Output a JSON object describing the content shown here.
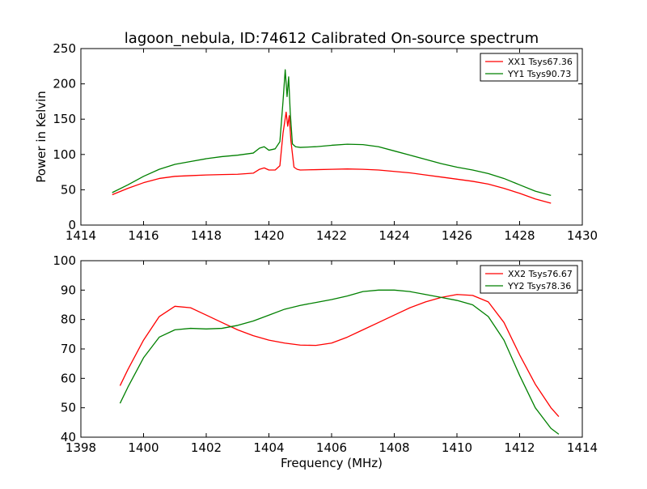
{
  "figure": {
    "title": "lagoon_nebula, ID:74612 Calibrated On-source spectrum"
  },
  "chart_data": [
    {
      "type": "line",
      "title": "lagoon_nebula, ID:74612 Calibrated On-source spectrum",
      "xlabel": "",
      "ylabel": "Power in Kelvin",
      "xlim": [
        1414,
        1430
      ],
      "ylim": [
        0,
        250
      ],
      "xticks": [
        1414,
        1416,
        1418,
        1420,
        1422,
        1424,
        1426,
        1428,
        1430
      ],
      "yticks": [
        0,
        50,
        100,
        150,
        200,
        250
      ],
      "grid": false,
      "legend": "top-right",
      "series": [
        {
          "name": "XX1 Tsys67.36",
          "color": "#ff0000",
          "x": [
            1415.0,
            1415.5,
            1416.0,
            1416.5,
            1417.0,
            1417.5,
            1418.0,
            1418.5,
            1419.0,
            1419.5,
            1419.7,
            1419.85,
            1420.0,
            1420.2,
            1420.35,
            1420.45,
            1420.55,
            1420.6,
            1420.65,
            1420.7,
            1420.8,
            1420.9,
            1421.0,
            1421.5,
            1422.0,
            1422.5,
            1423.0,
            1423.5,
            1424.0,
            1424.5,
            1425.0,
            1425.5,
            1426.0,
            1426.5,
            1427.0,
            1427.5,
            1428.0,
            1428.5,
            1429.0
          ],
          "values": [
            43,
            52,
            60,
            66,
            69,
            70,
            71,
            71.5,
            72,
            73.5,
            79,
            81,
            78,
            78,
            84,
            130,
            160,
            140,
            155,
            120,
            82,
            79,
            78,
            78.5,
            79,
            79.5,
            79,
            78,
            76,
            74,
            71,
            68,
            65,
            62,
            58,
            52,
            45,
            37,
            31
          ]
        },
        {
          "name": "YY1 Tsys90.73",
          "color": "#008000",
          "x": [
            1415.0,
            1415.5,
            1416.0,
            1416.5,
            1417.0,
            1417.5,
            1418.0,
            1418.5,
            1419.0,
            1419.5,
            1419.7,
            1419.85,
            1420.0,
            1420.2,
            1420.35,
            1420.45,
            1420.52,
            1420.58,
            1420.63,
            1420.68,
            1420.75,
            1420.85,
            1421.0,
            1421.5,
            1422.0,
            1422.5,
            1423.0,
            1423.5,
            1424.0,
            1424.5,
            1425.0,
            1425.5,
            1426.0,
            1426.5,
            1427.0,
            1427.5,
            1428.0,
            1428.5,
            1429.0
          ],
          "values": [
            46,
            57,
            69,
            79,
            86,
            90,
            94,
            97,
            99,
            102,
            109,
            111,
            106,
            108,
            118,
            175,
            220,
            182,
            210,
            160,
            115,
            111,
            110,
            111,
            113,
            114.5,
            114,
            111,
            105,
            99,
            93,
            87,
            82,
            78,
            73,
            66,
            57,
            48,
            42
          ]
        }
      ]
    },
    {
      "type": "line",
      "title": "",
      "xlabel": "Frequency (MHz)",
      "ylabel": "",
      "xlim": [
        1398,
        1414
      ],
      "ylim": [
        40,
        100
      ],
      "xticks": [
        1398,
        1400,
        1402,
        1404,
        1406,
        1408,
        1410,
        1412,
        1414
      ],
      "yticks": [
        40,
        50,
        60,
        70,
        80,
        90,
        100
      ],
      "grid": false,
      "legend": "top-right",
      "series": [
        {
          "name": "XX2 Tsys76.67",
          "color": "#ff0000",
          "x": [
            1399.25,
            1399.5,
            1400.0,
            1400.5,
            1401.0,
            1401.5,
            1402.0,
            1402.5,
            1403.0,
            1403.5,
            1404.0,
            1404.5,
            1405.0,
            1405.5,
            1406.0,
            1406.5,
            1407.0,
            1407.5,
            1408.0,
            1408.5,
            1409.0,
            1409.5,
            1410.0,
            1410.5,
            1411.0,
            1411.5,
            1412.0,
            1412.5,
            1413.0,
            1413.25
          ],
          "values": [
            57.5,
            63,
            73,
            81,
            84.5,
            84,
            81.5,
            79,
            76.5,
            74.5,
            73,
            72,
            71.3,
            71.2,
            72,
            74,
            76.5,
            79,
            81.5,
            84,
            86,
            87.5,
            88.5,
            88.2,
            86,
            79,
            68,
            58,
            50,
            47
          ]
        },
        {
          "name": "YY2 Tsys78.36",
          "color": "#008000",
          "x": [
            1399.25,
            1399.5,
            1400.0,
            1400.5,
            1401.0,
            1401.5,
            1402.0,
            1402.5,
            1403.0,
            1403.5,
            1404.0,
            1404.5,
            1405.0,
            1405.5,
            1406.0,
            1406.5,
            1407.0,
            1407.5,
            1408.0,
            1408.5,
            1409.0,
            1409.5,
            1410.0,
            1410.5,
            1411.0,
            1411.5,
            1412.0,
            1412.5,
            1413.0,
            1413.25
          ],
          "values": [
            51.5,
            57,
            67,
            74,
            76.5,
            77,
            76.8,
            77,
            78,
            79.5,
            81.5,
            83.5,
            84.8,
            85.8,
            86.8,
            88,
            89.5,
            90,
            90,
            89.5,
            88.5,
            87.5,
            86.5,
            85,
            81,
            73,
            61,
            50,
            43,
            41
          ]
        }
      ]
    }
  ]
}
